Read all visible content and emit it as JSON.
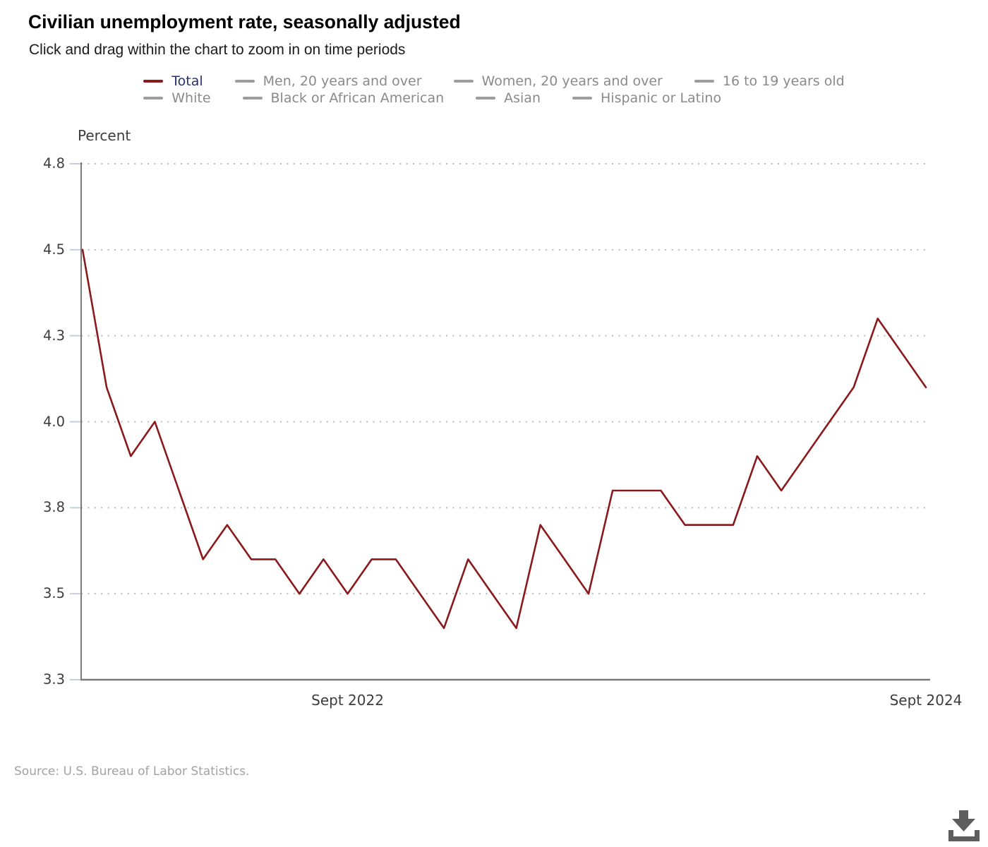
{
  "header": {
    "title": "Civilian unemployment rate, seasonally adjusted",
    "subtitle": "Click and drag within the chart to zoom in on time periods"
  },
  "legend": {
    "row_break_after": 4,
    "items": [
      {
        "label": "Total",
        "active": true
      },
      {
        "label": "Men, 20 years and over",
        "active": false
      },
      {
        "label": "Women, 20 years and over",
        "active": false
      },
      {
        "label": "16 to 19 years old",
        "active": false
      },
      {
        "label": "White",
        "active": false
      },
      {
        "label": "Black or African American",
        "active": false
      },
      {
        "label": "Asian",
        "active": false
      },
      {
        "label": "Hispanic or Latino",
        "active": false
      }
    ]
  },
  "chart_data": {
    "type": "line",
    "title": "Civilian unemployment rate, seasonally adjusted",
    "series_name": "Total",
    "xlabel": "",
    "ylabel": "Percent",
    "ylim": [
      3.25,
      4.75
    ],
    "grid": "dotted-horizontal",
    "legend_position": "top",
    "x": [
      "Oct 2021",
      "Nov 2021",
      "Dec 2021",
      "Jan 2022",
      "Feb 2022",
      "Mar 2022",
      "Apr 2022",
      "May 2022",
      "Jun 2022",
      "Jul 2022",
      "Aug 2022",
      "Sept 2022",
      "Oct 2022",
      "Nov 2022",
      "Dec 2022",
      "Jan 2023",
      "Feb 2023",
      "Mar 2023",
      "Apr 2023",
      "May 2023",
      "Jun 2023",
      "Jul 2023",
      "Aug 2023",
      "Sept 2023",
      "Oct 2023",
      "Nov 2023",
      "Dec 2023",
      "Jan 2024",
      "Feb 2024",
      "Mar 2024",
      "Apr 2024",
      "May 2024",
      "Jun 2024",
      "Jul 2024",
      "Aug 2024",
      "Sept 2024"
    ],
    "values": [
      4.5,
      4.1,
      3.9,
      4.0,
      3.8,
      3.6,
      3.7,
      3.6,
      3.6,
      3.5,
      3.6,
      3.5,
      3.6,
      3.6,
      3.5,
      3.4,
      3.6,
      3.5,
      3.4,
      3.7,
      3.6,
      3.5,
      3.8,
      3.8,
      3.8,
      3.7,
      3.7,
      3.7,
      3.9,
      3.8,
      3.9,
      4.0,
      4.1,
      4.3,
      4.2,
      4.1
    ],
    "yaxis_ticks": [
      {
        "value": 4.75,
        "label": "4.8"
      },
      {
        "value": 4.5,
        "label": "4.5"
      },
      {
        "value": 4.25,
        "label": "4.3"
      },
      {
        "value": 4.0,
        "label": "4.0"
      },
      {
        "value": 3.75,
        "label": "3.8"
      },
      {
        "value": 3.5,
        "label": "3.5"
      },
      {
        "value": 3.25,
        "label": "3.3"
      }
    ],
    "xaxis_ticks": [
      {
        "index": 11,
        "label": "Sept 2022"
      },
      {
        "index": 35,
        "label": "Sept 2024"
      }
    ]
  },
  "footer": {
    "source": "Source: U.S. Bureau of Labor Statistics."
  },
  "icons": {
    "download": "download-icon"
  },
  "colors": {
    "line": "#8a191c",
    "active_label": "#28306b",
    "inactive_swatch": "#9d9d9d",
    "inactive_label": "#8a8a8a",
    "grid": "#bababa",
    "axis": "#7a7a7a",
    "tick": "#c3cfe0",
    "text": "#3d3d3d",
    "source": "#a2a2a2",
    "download": "#5e5e5e"
  }
}
